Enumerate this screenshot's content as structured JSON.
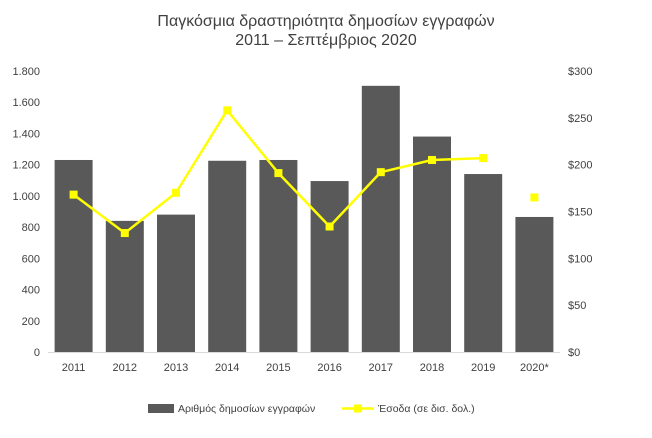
{
  "chart_data": {
    "type": "bar",
    "title": "Παγκόσμια δραστηριότητα  δημοσίων εγγραφών",
    "subtitle": "2011 – Σεπτέμβριος 2020",
    "categories": [
      "2011",
      "2012",
      "2013",
      "2014",
      "2015",
      "2016",
      "2017",
      "2018",
      "2019",
      "2020*"
    ],
    "series": [
      {
        "name": "Αριθμός δημοσίων εγγραφών",
        "type": "bar",
        "axis": "left",
        "color": "#595959",
        "values": [
          1230,
          840,
          880,
          1225,
          1230,
          1095,
          1705,
          1380,
          1140,
          865
        ]
      },
      {
        "name": "Έσοδα (σε δισ. δολ.)",
        "type": "line",
        "axis": "right",
        "color": "#ffff00",
        "values": [
          168,
          127,
          170,
          258,
          191,
          134,
          192,
          205,
          207,
          null
        ],
        "standalone_points": [
          {
            "index": 9,
            "value": 165
          }
        ]
      }
    ],
    "y_left": {
      "min": 0,
      "max": 1800,
      "ticks": [
        0,
        200,
        400,
        600,
        800,
        1000,
        1200,
        1400,
        1600,
        1800
      ],
      "tick_labels": [
        "0",
        "200",
        "400",
        "600",
        "800",
        "1.000",
        "1.200",
        "1.400",
        "1.600",
        "1.800"
      ]
    },
    "y_right": {
      "min": 0,
      "max": 300,
      "ticks": [
        0,
        50,
        100,
        150,
        200,
        250,
        300
      ],
      "tick_labels": [
        "$0",
        "$50",
        "$100",
        "$150",
        "$200",
        "$250",
        "$300"
      ]
    },
    "grid": false,
    "legend": "bottom"
  }
}
